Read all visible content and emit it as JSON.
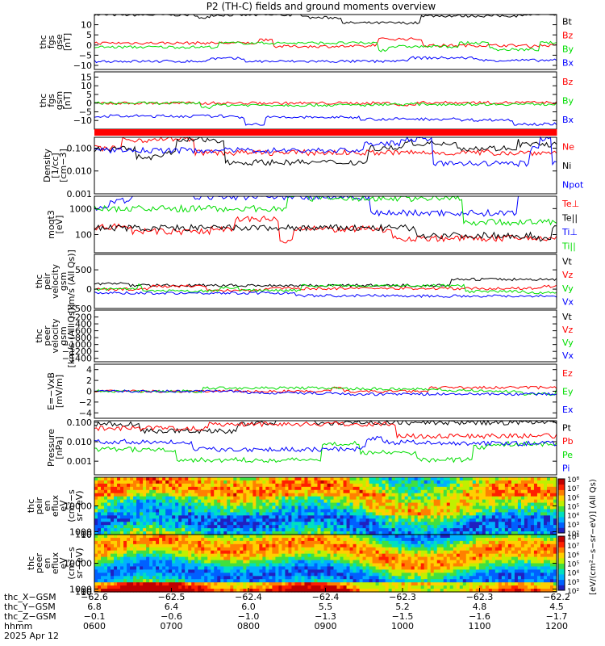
{
  "title": "P2 (TH-C) fields and ground moments overview",
  "colors": {
    "black": "#000000",
    "red": "#ff0000",
    "green": "#00dd00",
    "blue": "#0000ff"
  },
  "chart_data": [
    {
      "id": "fgs1",
      "type": "line",
      "ylabel": [
        "thc",
        "fgs",
        "gse",
        "[nT]"
      ],
      "ylim": [
        -12,
        15
      ],
      "yticks": [
        -10,
        -5,
        0,
        5,
        10
      ],
      "ticklabels": [
        "−10",
        "−5",
        "0",
        "5",
        "10"
      ],
      "series": [
        {
          "name": "Bt",
          "color": "black",
          "level": 13
        },
        {
          "name": "Bz",
          "color": "red",
          "level": 1
        },
        {
          "name": "By",
          "color": "green",
          "level": -1
        },
        {
          "name": "Bx",
          "color": "blue",
          "level": -8
        }
      ]
    },
    {
      "id": "fgs2",
      "type": "line",
      "ylabel": [
        "thc",
        "fgs",
        "gsm",
        "[nT]"
      ],
      "ylim": [
        -15,
        18
      ],
      "yticks": [
        -10,
        -5,
        0,
        5,
        10,
        15
      ],
      "ticklabels": [
        "−10",
        "−5",
        "0",
        "5",
        "10",
        "15"
      ],
      "series": [
        {
          "name": "Bz",
          "color": "red",
          "level": 0
        },
        {
          "name": "By",
          "color": "green",
          "level": 0
        },
        {
          "name": "Bx",
          "color": "blue",
          "level": -10
        }
      ]
    },
    {
      "id": "density",
      "type": "line",
      "log": true,
      "ylabel": [
        "Density",
        "[1/cc]",
        "[cm−3]"
      ],
      "ylim": [
        0.001,
        0.3
      ],
      "yticks": [
        0.001,
        0.01,
        0.1
      ],
      "ticklabels": [
        "0.001",
        "0.010",
        "0.100"
      ],
      "series": [
        {
          "name": "Ne",
          "color": "red",
          "level": 0.1
        },
        {
          "name": "Ni",
          "color": "black",
          "level": 0.09
        },
        {
          "name": "Npot",
          "color": "blue",
          "level": 0.08
        }
      ]
    },
    {
      "id": "temp",
      "type": "line",
      "log": true,
      "ylabel": [
        "moqt3",
        "[eV]"
      ],
      "ylim": [
        20,
        3000
      ],
      "yticks": [
        100,
        1000
      ],
      "ticklabels": [
        "100",
        "1000"
      ],
      "series": [
        {
          "name": "Te⊥",
          "color": "red",
          "level": 200
        },
        {
          "name": "Te||",
          "color": "black",
          "level": 180
        },
        {
          "name": "Ti⊥",
          "color": "blue",
          "level": 1500
        },
        {
          "name": "Ti||",
          "color": "green",
          "level": 1000
        }
      ]
    },
    {
      "id": "peir_vel",
      "type": "line",
      "ylabel": [
        "thc",
        "peir",
        "velocity",
        "gsm",
        "[km/s (All Qs)]"
      ],
      "ylim": [
        -500,
        900
      ],
      "yticks": [
        -500,
        0,
        500
      ],
      "ticklabels": [
        "−500",
        "0",
        "500"
      ],
      "series": [
        {
          "name": "Vt",
          "color": "black",
          "level": 150
        },
        {
          "name": "Vz",
          "color": "red",
          "level": 0
        },
        {
          "name": "Vy",
          "color": "green",
          "level": 0
        },
        {
          "name": "Vx",
          "color": "blue",
          "level": -100
        }
      ]
    },
    {
      "id": "peer_vel",
      "type": "line",
      "ylabel": [
        "thc",
        "peer",
        "velocity",
        "gsm",
        "[km/s (All Qs)]"
      ],
      "ylim": [
        -1500,
        0
      ],
      "yticks": [
        -1400,
        -1200,
        -1000,
        -800,
        -600,
        -400,
        -200
      ],
      "ticklabels": [
        "−1400",
        "−1200",
        "−1000",
        "−800",
        "−600",
        "−400",
        "−200"
      ],
      "series": [
        {
          "name": "Vt",
          "color": "black"
        },
        {
          "name": "Vz",
          "color": "red"
        },
        {
          "name": "Vy",
          "color": "green"
        },
        {
          "name": "Vx",
          "color": "blue"
        }
      ]
    },
    {
      "id": "efield",
      "type": "line",
      "ylabel": [
        "E=−VxB",
        "[mV/m]"
      ],
      "ylim": [
        -5,
        5
      ],
      "yticks": [
        -4,
        -2,
        0,
        2,
        4
      ],
      "ticklabels": [
        "−4",
        "−2",
        "0",
        "2",
        "4"
      ],
      "series": [
        {
          "name": "Ez",
          "color": "red",
          "level": 0
        },
        {
          "name": "Ey",
          "color": "green",
          "level": 0
        },
        {
          "name": "Ex",
          "color": "blue",
          "level": 0
        }
      ]
    },
    {
      "id": "pressure",
      "type": "line",
      "log": true,
      "ylabel": [
        "Pressure",
        "[nPa]"
      ],
      "ylim": [
        0.0002,
        0.12
      ],
      "yticks": [
        0.001,
        0.01,
        0.1
      ],
      "ticklabels": [
        "0.001",
        "0.010",
        "0.100"
      ],
      "series": [
        {
          "name": "Pt",
          "color": "black",
          "level": 0.08
        },
        {
          "name": "Pb",
          "color": "red",
          "level": 0.05
        },
        {
          "name": "Pe",
          "color": "green",
          "level": 0.004
        },
        {
          "name": "Pi",
          "color": "blue",
          "level": 0.01
        }
      ]
    },
    {
      "id": "peir_spec",
      "type": "heatmap",
      "ylabel": [
        "thc",
        "peir",
        "en",
        "eflux",
        "eV",
        "(cm²−s",
        "sr−eV)"
      ],
      "ylim": [
        5,
        20000
      ],
      "yticks": [
        10,
        100,
        1000,
        10000
      ],
      "ticklabels": [
        "10",
        "100",
        "1000",
        "10000"
      ]
    },
    {
      "id": "peer_spec",
      "type": "heatmap",
      "ylabel": [
        "thc",
        "peer",
        "en",
        "eflux",
        "eV",
        "(cm²−s",
        "sr−eV)"
      ],
      "ylim": [
        5,
        20000
      ],
      "yticks": [
        10,
        100,
        1000,
        10000
      ],
      "ticklabels": [
        "10",
        "100",
        "1000",
        "10000"
      ]
    }
  ],
  "colorbar": {
    "label": "[eV/(cm²−s−sr−eV)] (All Qs)",
    "upper_ticks": [
      "10²",
      "10³",
      "10⁴",
      "10⁵",
      "10⁶",
      "10⁷",
      "10⁸"
    ],
    "lower_ticks": [
      "10²",
      "10³",
      "10⁴",
      "10⁵",
      "10⁶",
      "10⁷",
      "10⁸"
    ]
  },
  "xaxis": {
    "row_labels": [
      "thc_X−GSM",
      "thc_Y−GSM",
      "thc_Z−GSM",
      "hhmm",
      "2025 Apr 12"
    ],
    "columns": [
      [
        "−62.6",
        "6.8",
        "−0.1",
        "0600"
      ],
      [
        "−62.5",
        "6.4",
        "−0.6",
        "0700"
      ],
      [
        "−62.4",
        "6.0",
        "−1.0",
        "0800"
      ],
      [
        "−62.4",
        "5.5",
        "−1.3",
        "0900"
      ],
      [
        "−62.3",
        "5.2",
        "−1.5",
        "1000"
      ],
      [
        "−62.3",
        "4.8",
        "−1.6",
        "1100"
      ],
      [
        "−62.2",
        "4.5",
        "−1.7",
        "1200"
      ]
    ]
  }
}
